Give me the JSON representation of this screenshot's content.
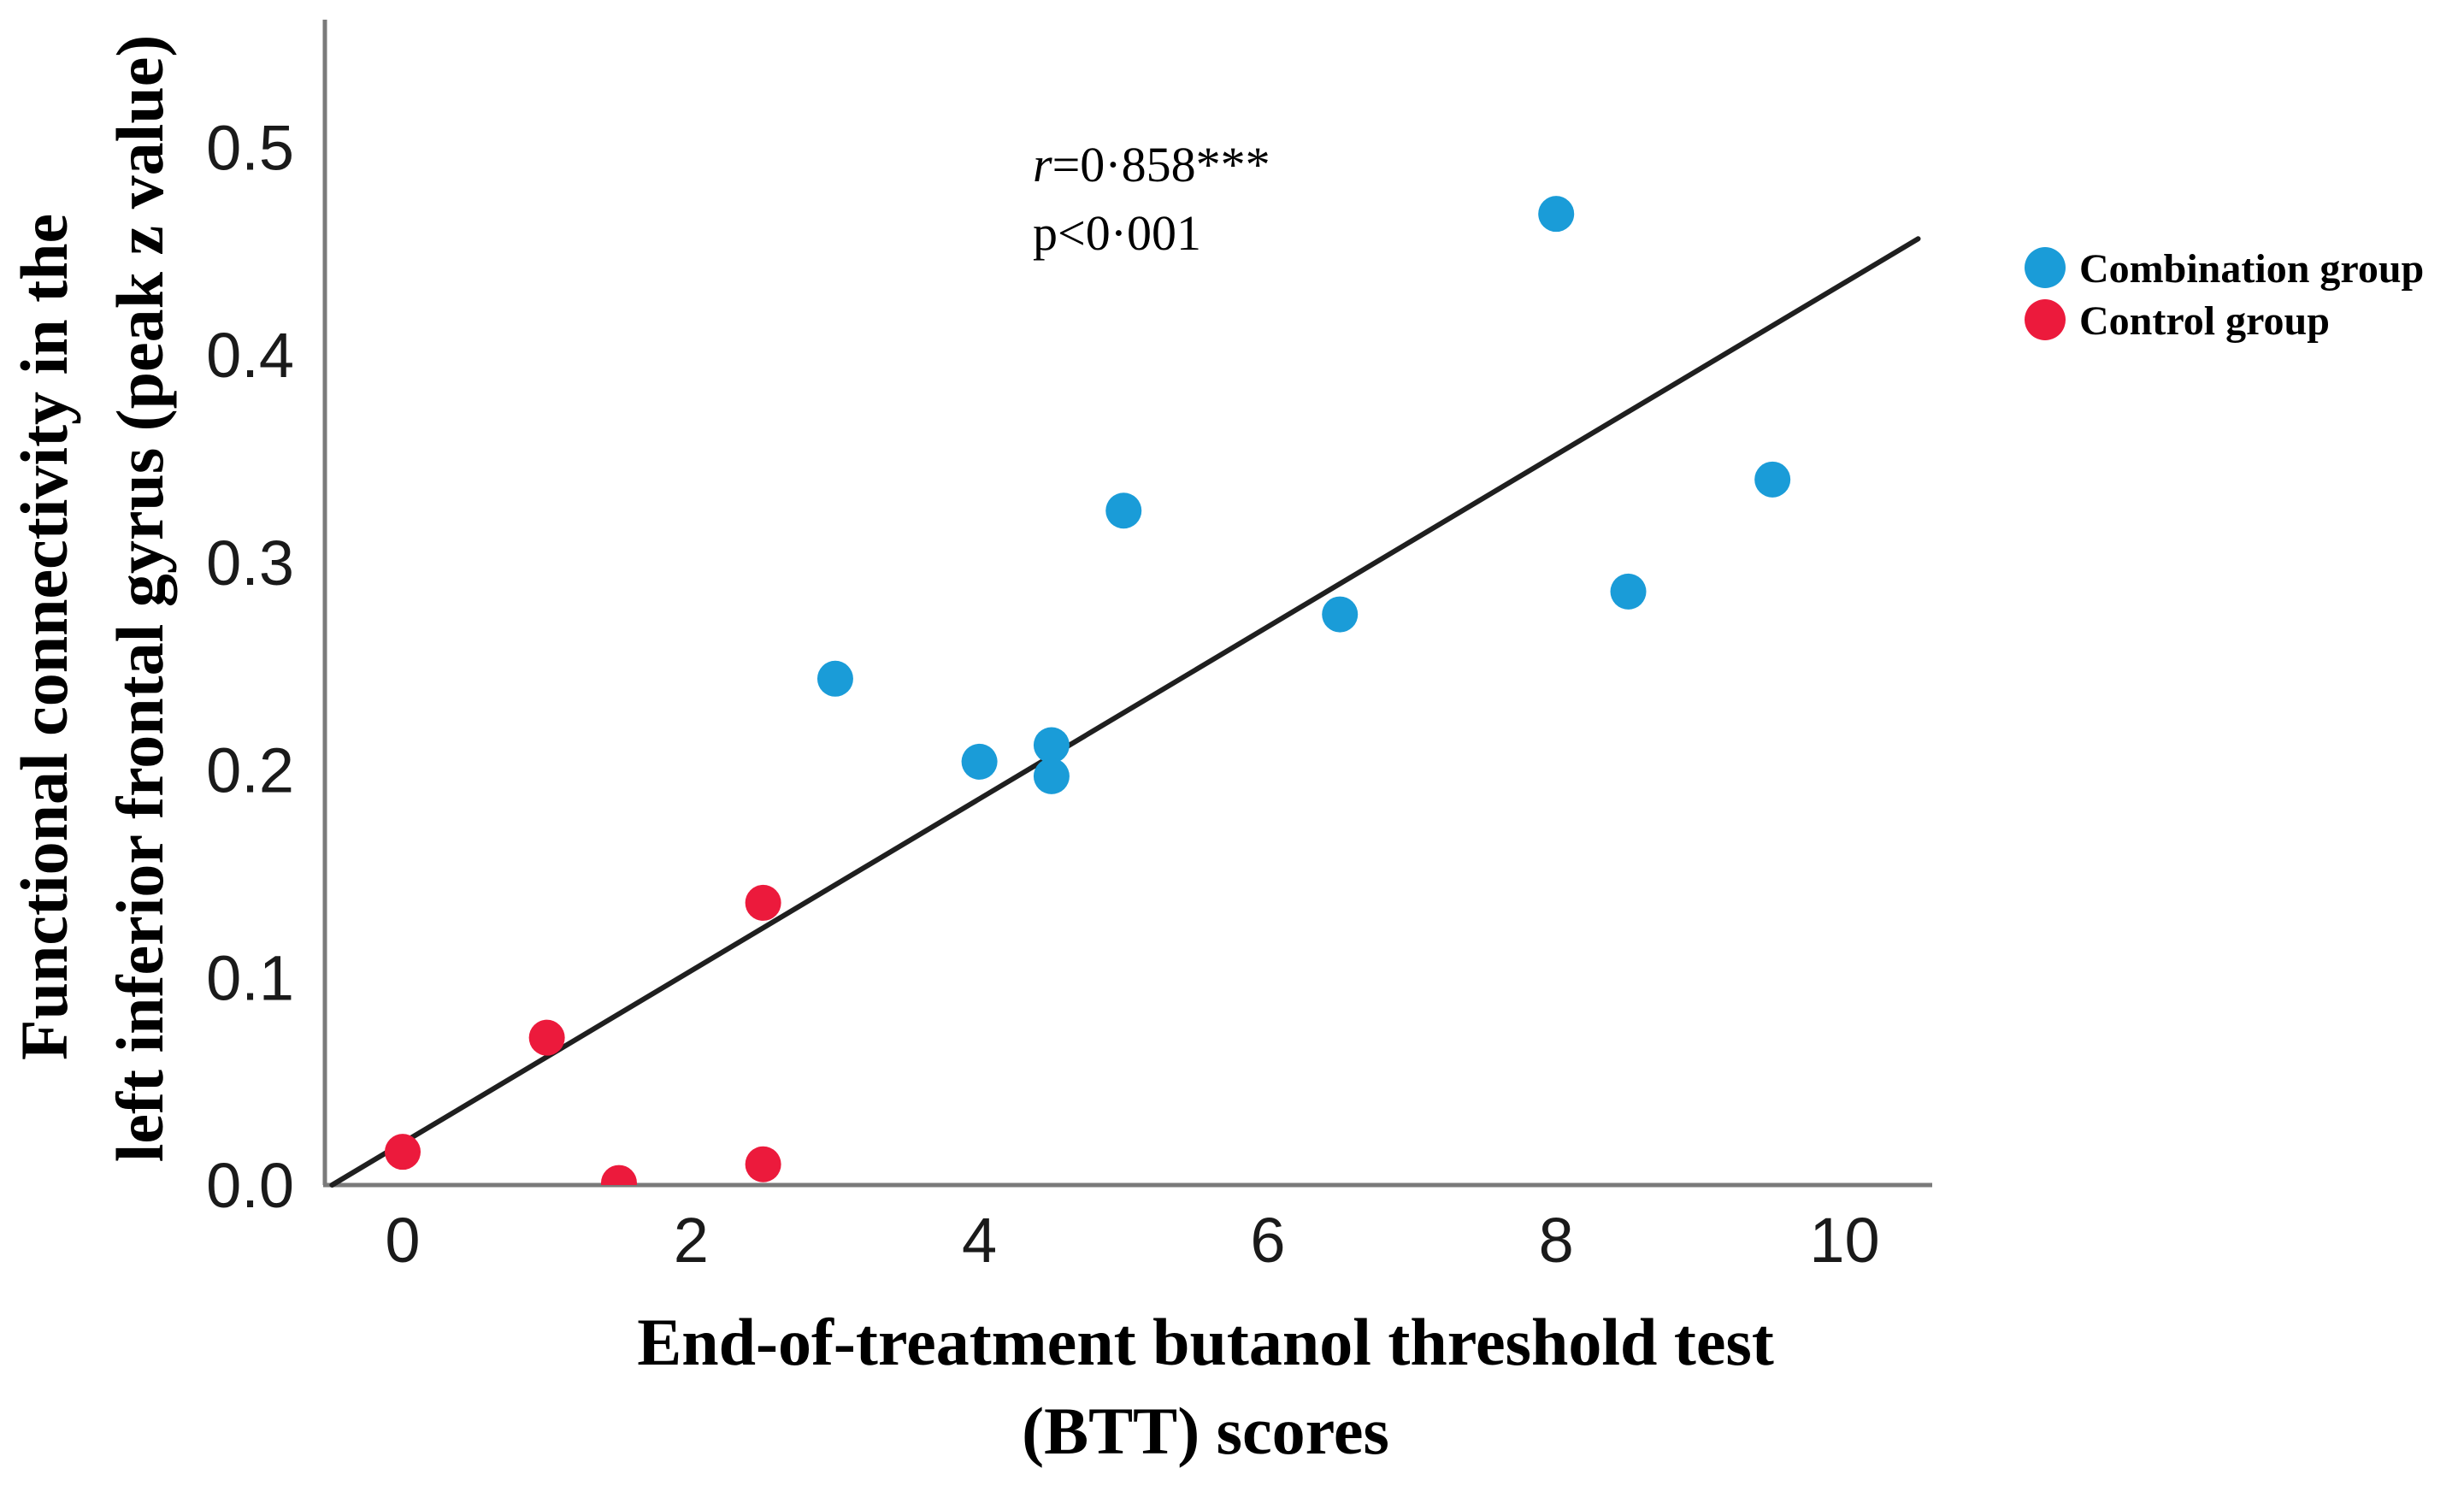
{
  "chart_data": {
    "type": "scatter",
    "title": "",
    "xlabel_line1": "End-of-treatment butanol threshold test",
    "xlabel_line2": "(BTT) scores",
    "ylabel_line1": "Functional connectivity in the",
    "ylabel_line2": "left inferior frontal gyrus (peak z value)",
    "x_ticks": [
      0,
      2,
      4,
      6,
      8,
      10
    ],
    "x_tick_labels": [
      "0",
      "2",
      "4",
      "6",
      "8",
      "10"
    ],
    "y_ticks": [
      0,
      0.1,
      0.2,
      0.3,
      0.4,
      0.5
    ],
    "y_tick_labels": [
      "0.0",
      "0.1",
      "0.2",
      "0.3",
      "0.4",
      "0.5"
    ],
    "xlim": [
      -0.55,
      10.61
    ],
    "ylim": [
      0,
      0.562
    ],
    "grid": false,
    "legend_position": "outside-right",
    "annotation": {
      "r_italic": "r",
      "r_text": "=0·858***",
      "p_text": "p<0·001"
    },
    "series": [
      {
        "name": "Combination group",
        "color": "#1a9cd8",
        "points": [
          [
            3.0,
            0.244
          ],
          [
            4.0,
            0.204
          ],
          [
            4.5,
            0.212
          ],
          [
            4.5,
            0.197
          ],
          [
            5.0,
            0.325
          ],
          [
            6.5,
            0.275
          ],
          [
            8.0,
            0.468
          ],
          [
            8.5,
            0.286
          ],
          [
            9.5,
            0.34
          ]
        ]
      },
      {
        "name": "Control group",
        "color": "#ec1a3c",
        "points": [
          [
            0.0,
            0.016
          ],
          [
            1.0,
            0.071
          ],
          [
            1.5,
            0.001
          ],
          [
            2.5,
            0.136
          ],
          [
            2.5,
            0.01
          ]
        ]
      }
    ],
    "trend_line": {
      "x1": -0.49,
      "y1": 0.0,
      "x2": 10.51,
      "y2": 0.456,
      "color": "#1f1f1f"
    },
    "colors": {
      "axis_line": "#7a7a7a",
      "text": "#000000"
    }
  }
}
